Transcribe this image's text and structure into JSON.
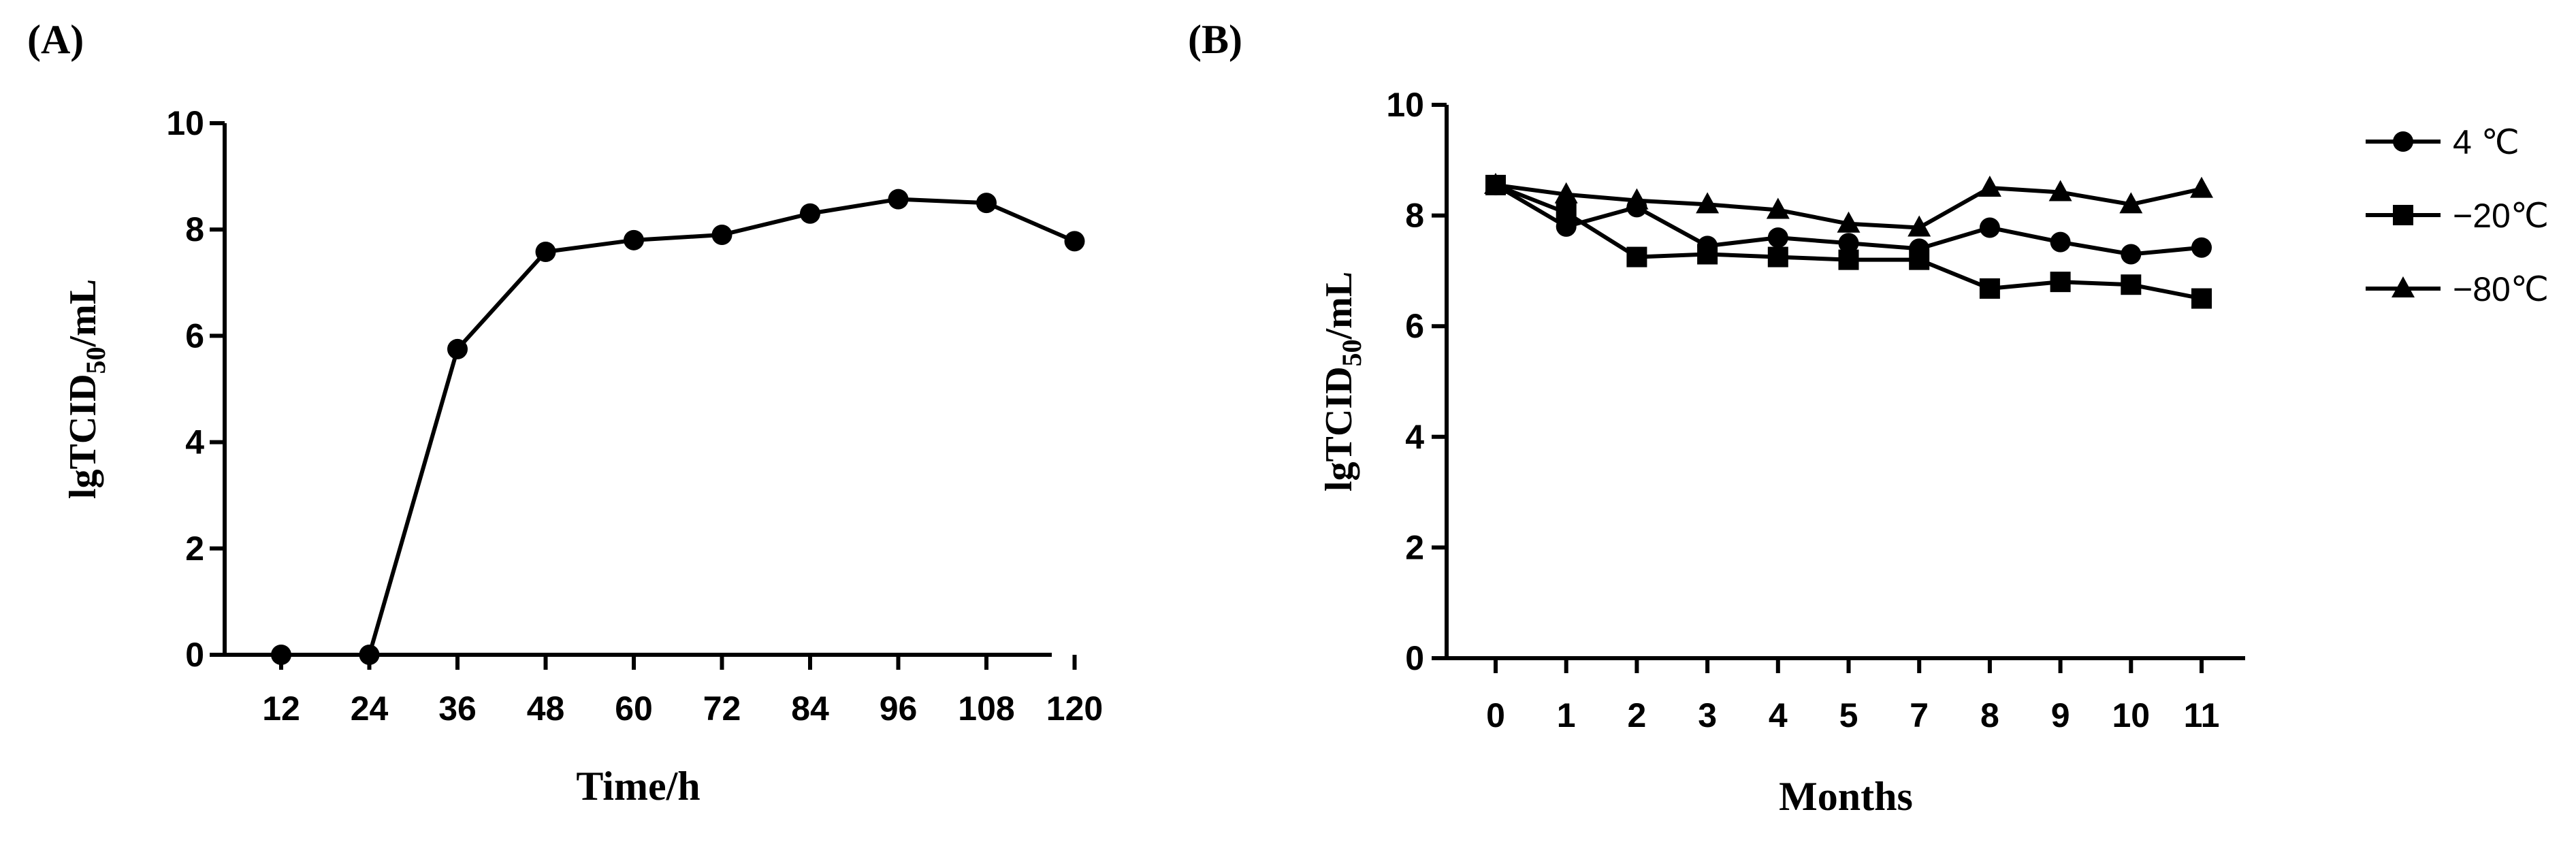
{
  "chart_data": [
    {
      "type": "line",
      "panel_label": "(A)",
      "title": "",
      "ylabel_main": "lgTCID",
      "ylabel_sub": "50",
      "ylabel_tail": "/mL",
      "xlabel": "Time/h",
      "ylim": [
        0,
        10
      ],
      "yticks": [
        "0",
        "2",
        "4",
        "6",
        "8",
        "10"
      ],
      "categories": [
        "12",
        "24",
        "36",
        "48",
        "60",
        "72",
        "84",
        "96",
        "108",
        "120"
      ],
      "series": [
        {
          "name": "",
          "marker": "circle",
          "values": [
            0,
            0,
            5.75,
            7.58,
            7.8,
            7.9,
            8.3,
            8.57,
            8.5,
            7.78
          ]
        }
      ]
    },
    {
      "type": "line",
      "panel_label": "(B)",
      "title": "",
      "ylabel_main": "lgTCID",
      "ylabel_sub": "50",
      "ylabel_tail": "/mL",
      "xlabel": "Months",
      "ylim": [
        0,
        10
      ],
      "yticks": [
        "0",
        "2",
        "4",
        "6",
        "8",
        "10"
      ],
      "categories": [
        "0",
        "1",
        "2",
        "3",
        "4",
        "5",
        "7",
        "8",
        "9",
        "10",
        "11"
      ],
      "legend_position": "right",
      "series": [
        {
          "name": "4 ℃",
          "marker": "circle",
          "values": [
            8.55,
            7.8,
            8.15,
            7.45,
            7.6,
            7.5,
            7.4,
            7.78,
            7.52,
            7.3,
            7.42
          ]
        },
        {
          "name": "−20℃",
          "marker": "square",
          "values": [
            8.55,
            8.05,
            7.25,
            7.3,
            7.25,
            7.2,
            7.2,
            6.68,
            6.8,
            6.75,
            6.5
          ]
        },
        {
          "name": "−80℃",
          "marker": "triangle",
          "values": [
            8.55,
            8.38,
            8.27,
            8.2,
            8.1,
            7.85,
            7.78,
            8.5,
            8.42,
            8.2,
            8.48
          ]
        }
      ]
    }
  ]
}
